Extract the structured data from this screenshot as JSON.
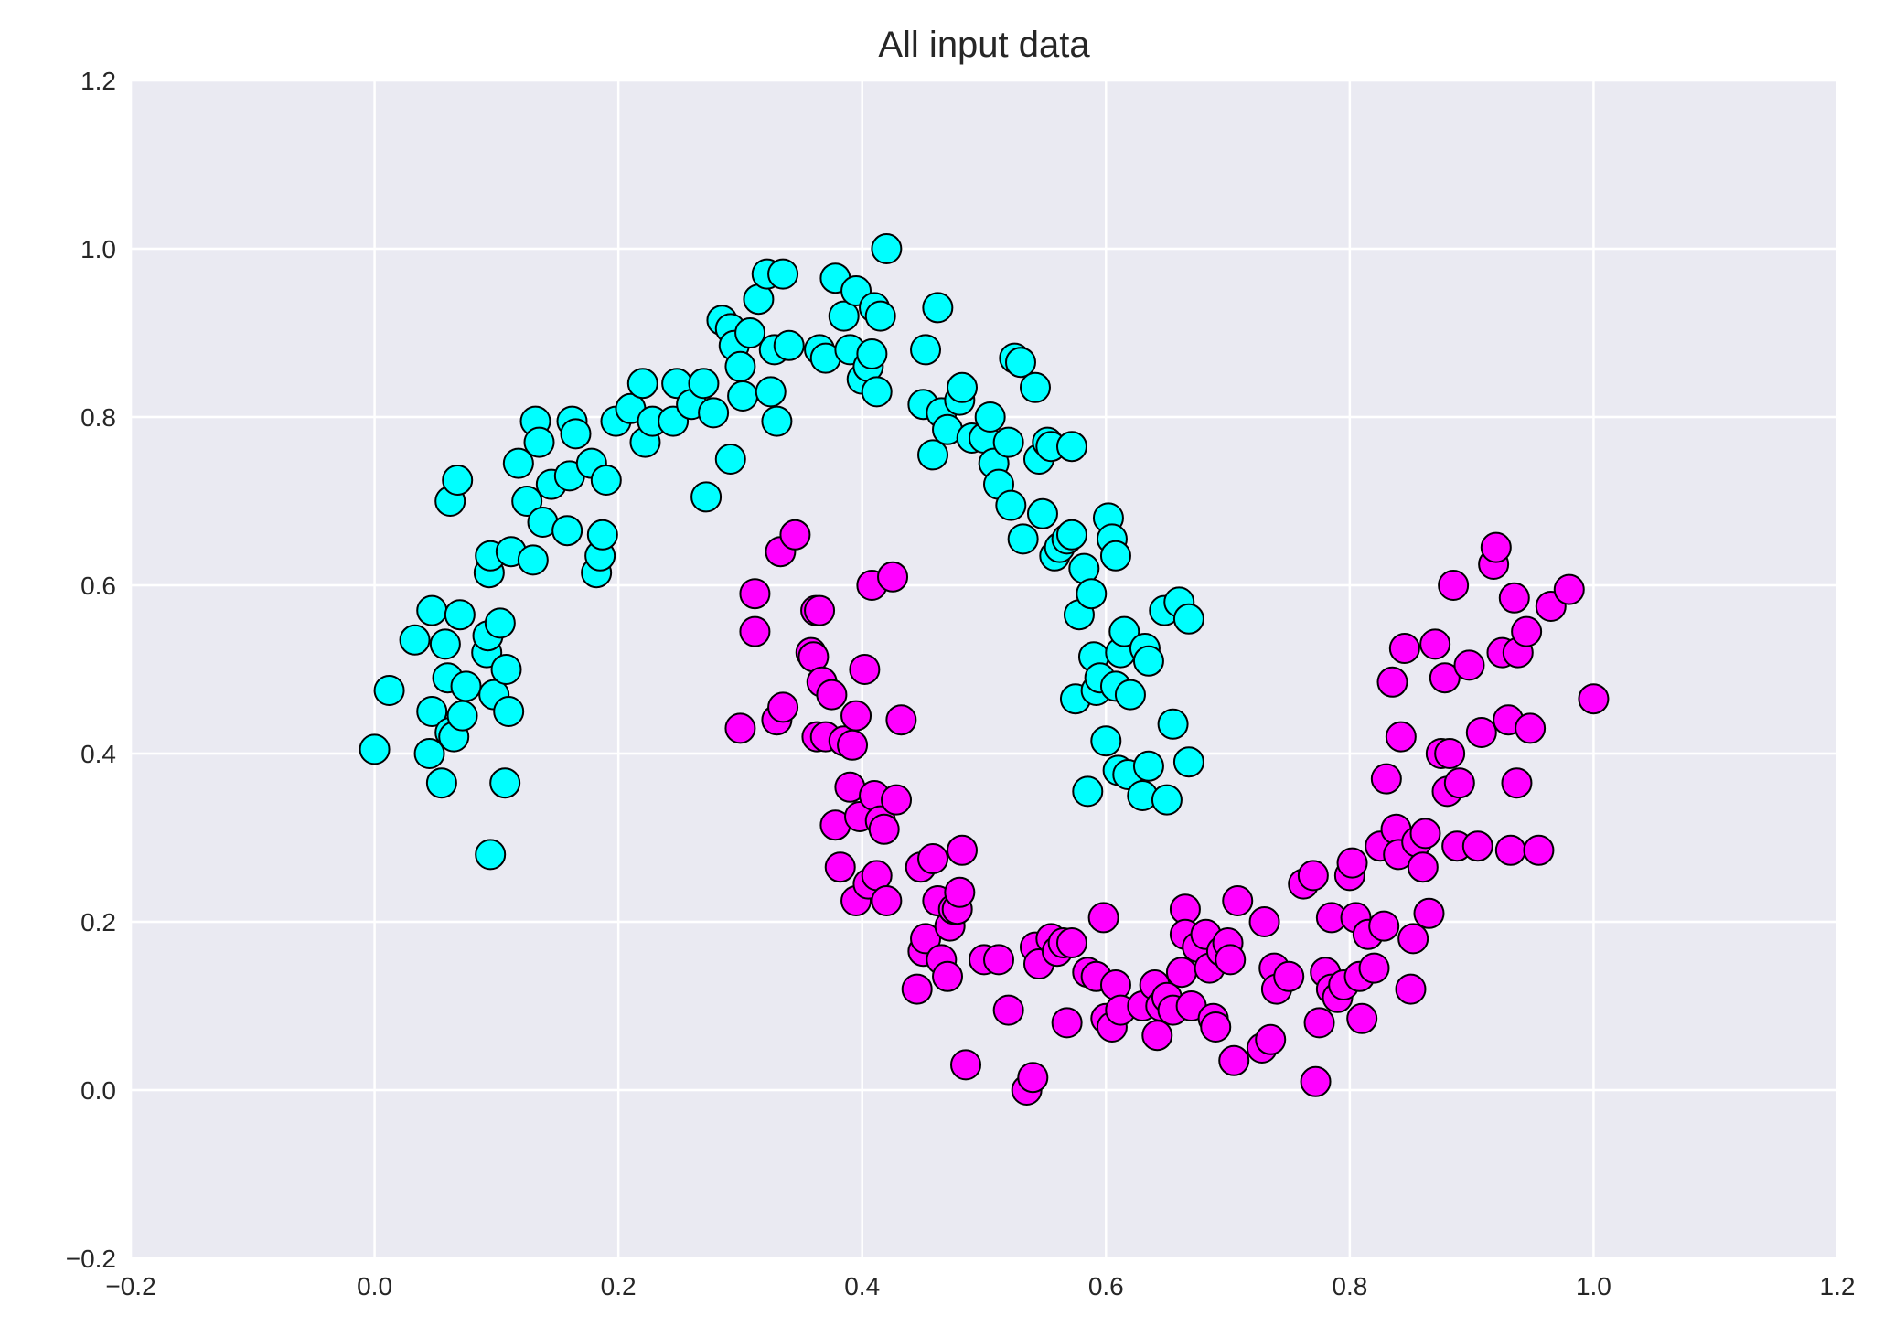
{
  "chart_data": {
    "type": "scatter",
    "title": "All input data",
    "xlabel": "",
    "ylabel": "",
    "xlim": [
      -0.2,
      1.2
    ],
    "ylim": [
      -0.2,
      1.2
    ],
    "xticks": [
      -0.2,
      0.0,
      0.2,
      0.4,
      0.6,
      0.8,
      1.0,
      1.2
    ],
    "xtick_labels": [
      "−0.2",
      "0.0",
      "0.2",
      "0.4",
      "0.6",
      "0.8",
      "1.0",
      "1.2"
    ],
    "yticks": [
      -0.2,
      0.0,
      0.2,
      0.4,
      0.6,
      0.8,
      1.0,
      1.2
    ],
    "ytick_labels": [
      "−0.2",
      "0.0",
      "0.2",
      "0.4",
      "0.6",
      "0.8",
      "1.0",
      "1.2"
    ],
    "grid": true,
    "legend": "none",
    "colors": {
      "background": "#eaeaf2",
      "grid": "#ffffff",
      "edge": "#000000"
    },
    "series": [
      {
        "color": "#00ffff",
        "points": [
          [
            0.0,
            0.405
          ],
          [
            0.012,
            0.475
          ],
          [
            0.033,
            0.535
          ],
          [
            0.045,
            0.4
          ],
          [
            0.047,
            0.57
          ],
          [
            0.047,
            0.45
          ],
          [
            0.055,
            0.365
          ],
          [
            0.058,
            0.53
          ],
          [
            0.06,
            0.49
          ],
          [
            0.062,
            0.7
          ],
          [
            0.062,
            0.425
          ],
          [
            0.065,
            0.42
          ],
          [
            0.068,
            0.725
          ],
          [
            0.07,
            0.565
          ],
          [
            0.072,
            0.445
          ],
          [
            0.075,
            0.48
          ],
          [
            0.092,
            0.52
          ],
          [
            0.093,
            0.54
          ],
          [
            0.094,
            0.615
          ],
          [
            0.095,
            0.28
          ],
          [
            0.095,
            0.635
          ],
          [
            0.098,
            0.47
          ],
          [
            0.103,
            0.555
          ],
          [
            0.107,
            0.365
          ],
          [
            0.108,
            0.5
          ],
          [
            0.11,
            0.45
          ],
          [
            0.112,
            0.64
          ],
          [
            0.118,
            0.745
          ],
          [
            0.125,
            0.7
          ],
          [
            0.13,
            0.63
          ],
          [
            0.132,
            0.795
          ],
          [
            0.135,
            0.77
          ],
          [
            0.138,
            0.675
          ],
          [
            0.145,
            0.72
          ],
          [
            0.158,
            0.665
          ],
          [
            0.16,
            0.73
          ],
          [
            0.162,
            0.795
          ],
          [
            0.165,
            0.78
          ],
          [
            0.178,
            0.745
          ],
          [
            0.182,
            0.615
          ],
          [
            0.185,
            0.635
          ],
          [
            0.187,
            0.66
          ],
          [
            0.19,
            0.725
          ],
          [
            0.198,
            0.795
          ],
          [
            0.21,
            0.81
          ],
          [
            0.22,
            0.84
          ],
          [
            0.222,
            0.77
          ],
          [
            0.228,
            0.795
          ],
          [
            0.245,
            0.795
          ],
          [
            0.248,
            0.84
          ],
          [
            0.26,
            0.815
          ],
          [
            0.27,
            0.84
          ],
          [
            0.272,
            0.705
          ],
          [
            0.278,
            0.805
          ],
          [
            0.285,
            0.915
          ],
          [
            0.292,
            0.905
          ],
          [
            0.292,
            0.75
          ],
          [
            0.295,
            0.885
          ],
          [
            0.3,
            0.86
          ],
          [
            0.302,
            0.825
          ],
          [
            0.308,
            0.9
          ],
          [
            0.315,
            0.94
          ],
          [
            0.322,
            0.97
          ],
          [
            0.325,
            0.83
          ],
          [
            0.328,
            0.88
          ],
          [
            0.33,
            0.795
          ],
          [
            0.335,
            0.97
          ],
          [
            0.34,
            0.885
          ],
          [
            0.365,
            0.88
          ],
          [
            0.37,
            0.87
          ],
          [
            0.378,
            0.965
          ],
          [
            0.385,
            0.92
          ],
          [
            0.39,
            0.88
          ],
          [
            0.395,
            0.95
          ],
          [
            0.4,
            0.845
          ],
          [
            0.405,
            0.86
          ],
          [
            0.408,
            0.875
          ],
          [
            0.41,
            0.93
          ],
          [
            0.412,
            0.83
          ],
          [
            0.415,
            0.92
          ],
          [
            0.42,
            1.0
          ],
          [
            0.45,
            0.815
          ],
          [
            0.452,
            0.88
          ],
          [
            0.458,
            0.755
          ],
          [
            0.462,
            0.93
          ],
          [
            0.465,
            0.805
          ],
          [
            0.47,
            0.785
          ],
          [
            0.48,
            0.82
          ],
          [
            0.482,
            0.835
          ],
          [
            0.49,
            0.775
          ],
          [
            0.5,
            0.775
          ],
          [
            0.505,
            0.8
          ],
          [
            0.508,
            0.745
          ],
          [
            0.512,
            0.72
          ],
          [
            0.52,
            0.77
          ],
          [
            0.522,
            0.695
          ],
          [
            0.525,
            0.87
          ],
          [
            0.53,
            0.865
          ],
          [
            0.532,
            0.655
          ],
          [
            0.542,
            0.835
          ],
          [
            0.545,
            0.75
          ],
          [
            0.548,
            0.685
          ],
          [
            0.552,
            0.77
          ],
          [
            0.555,
            0.765
          ],
          [
            0.558,
            0.635
          ],
          [
            0.562,
            0.645
          ],
          [
            0.568,
            0.655
          ],
          [
            0.572,
            0.66
          ],
          [
            0.572,
            0.765
          ],
          [
            0.575,
            0.465
          ],
          [
            0.578,
            0.565
          ],
          [
            0.582,
            0.62
          ],
          [
            0.585,
            0.355
          ],
          [
            0.588,
            0.59
          ],
          [
            0.59,
            0.515
          ],
          [
            0.592,
            0.475
          ],
          [
            0.595,
            0.49
          ],
          [
            0.6,
            0.415
          ],
          [
            0.602,
            0.68
          ],
          [
            0.605,
            0.655
          ],
          [
            0.608,
            0.48
          ],
          [
            0.608,
            0.635
          ],
          [
            0.61,
            0.38
          ],
          [
            0.612,
            0.52
          ],
          [
            0.615,
            0.545
          ],
          [
            0.618,
            0.375
          ],
          [
            0.62,
            0.47
          ],
          [
            0.63,
            0.35
          ],
          [
            0.632,
            0.525
          ],
          [
            0.635,
            0.51
          ],
          [
            0.635,
            0.385
          ],
          [
            0.648,
            0.57
          ],
          [
            0.65,
            0.345
          ],
          [
            0.655,
            0.435
          ],
          [
            0.66,
            0.58
          ],
          [
            0.668,
            0.56
          ],
          [
            0.668,
            0.39
          ]
        ]
      },
      {
        "color": "#ff00ff",
        "points": [
          [
            0.3,
            0.43
          ],
          [
            0.312,
            0.59
          ],
          [
            0.312,
            0.545
          ],
          [
            0.33,
            0.44
          ],
          [
            0.333,
            0.64
          ],
          [
            0.335,
            0.455
          ],
          [
            0.345,
            0.66
          ],
          [
            0.358,
            0.52
          ],
          [
            0.36,
            0.515
          ],
          [
            0.362,
            0.57
          ],
          [
            0.363,
            0.42
          ],
          [
            0.365,
            0.57
          ],
          [
            0.367,
            0.485
          ],
          [
            0.37,
            0.42
          ],
          [
            0.375,
            0.47
          ],
          [
            0.378,
            0.315
          ],
          [
            0.382,
            0.265
          ],
          [
            0.385,
            0.415
          ],
          [
            0.39,
            0.36
          ],
          [
            0.392,
            0.41
          ],
          [
            0.395,
            0.445
          ],
          [
            0.395,
            0.225
          ],
          [
            0.398,
            0.325
          ],
          [
            0.402,
            0.5
          ],
          [
            0.405,
            0.245
          ],
          [
            0.408,
            0.6
          ],
          [
            0.41,
            0.35
          ],
          [
            0.412,
            0.255
          ],
          [
            0.415,
            0.32
          ],
          [
            0.418,
            0.31
          ],
          [
            0.42,
            0.225
          ],
          [
            0.425,
            0.61
          ],
          [
            0.428,
            0.345
          ],
          [
            0.432,
            0.44
          ],
          [
            0.445,
            0.12
          ],
          [
            0.448,
            0.265
          ],
          [
            0.45,
            0.165
          ],
          [
            0.452,
            0.18
          ],
          [
            0.458,
            0.275
          ],
          [
            0.462,
            0.225
          ],
          [
            0.465,
            0.155
          ],
          [
            0.47,
            0.135
          ],
          [
            0.472,
            0.195
          ],
          [
            0.475,
            0.215
          ],
          [
            0.478,
            0.215
          ],
          [
            0.48,
            0.235
          ],
          [
            0.482,
            0.285
          ],
          [
            0.485,
            0.03
          ],
          [
            0.5,
            0.155
          ],
          [
            0.512,
            0.155
          ],
          [
            0.52,
            0.095
          ],
          [
            0.535,
            0.0
          ],
          [
            0.54,
            0.015
          ],
          [
            0.542,
            0.17
          ],
          [
            0.545,
            0.15
          ],
          [
            0.555,
            0.18
          ],
          [
            0.56,
            0.165
          ],
          [
            0.565,
            0.175
          ],
          [
            0.568,
            0.08
          ],
          [
            0.572,
            0.175
          ],
          [
            0.585,
            0.14
          ],
          [
            0.592,
            0.135
          ],
          [
            0.598,
            0.205
          ],
          [
            0.6,
            0.085
          ],
          [
            0.605,
            0.075
          ],
          [
            0.608,
            0.125
          ],
          [
            0.612,
            0.095
          ],
          [
            0.63,
            0.1
          ],
          [
            0.64,
            0.125
          ],
          [
            0.642,
            0.065
          ],
          [
            0.645,
            0.1
          ],
          [
            0.65,
            0.11
          ],
          [
            0.655,
            0.095
          ],
          [
            0.662,
            0.14
          ],
          [
            0.665,
            0.215
          ],
          [
            0.665,
            0.185
          ],
          [
            0.67,
            0.1
          ],
          [
            0.675,
            0.17
          ],
          [
            0.682,
            0.185
          ],
          [
            0.685,
            0.145
          ],
          [
            0.688,
            0.085
          ],
          [
            0.69,
            0.075
          ],
          [
            0.695,
            0.165
          ],
          [
            0.7,
            0.175
          ],
          [
            0.702,
            0.155
          ],
          [
            0.705,
            0.035
          ],
          [
            0.708,
            0.225
          ],
          [
            0.728,
            0.05
          ],
          [
            0.73,
            0.2
          ],
          [
            0.735,
            0.06
          ],
          [
            0.738,
            0.145
          ],
          [
            0.74,
            0.12
          ],
          [
            0.75,
            0.135
          ],
          [
            0.762,
            0.245
          ],
          [
            0.77,
            0.255
          ],
          [
            0.775,
            0.08
          ],
          [
            0.772,
            0.01
          ],
          [
            0.78,
            0.14
          ],
          [
            0.785,
            0.205
          ],
          [
            0.785,
            0.12
          ],
          [
            0.79,
            0.11
          ],
          [
            0.795,
            0.125
          ],
          [
            0.8,
            0.255
          ],
          [
            0.802,
            0.27
          ],
          [
            0.805,
            0.205
          ],
          [
            0.808,
            0.135
          ],
          [
            0.81,
            0.085
          ],
          [
            0.815,
            0.185
          ],
          [
            0.82,
            0.145
          ],
          [
            0.825,
            0.29
          ],
          [
            0.828,
            0.195
          ],
          [
            0.83,
            0.37
          ],
          [
            0.835,
            0.485
          ],
          [
            0.838,
            0.31
          ],
          [
            0.84,
            0.28
          ],
          [
            0.842,
            0.42
          ],
          [
            0.845,
            0.525
          ],
          [
            0.85,
            0.12
          ],
          [
            0.852,
            0.18
          ],
          [
            0.855,
            0.295
          ],
          [
            0.86,
            0.265
          ],
          [
            0.862,
            0.305
          ],
          [
            0.865,
            0.21
          ],
          [
            0.87,
            0.53
          ],
          [
            0.875,
            0.4
          ],
          [
            0.878,
            0.49
          ],
          [
            0.88,
            0.355
          ],
          [
            0.882,
            0.4
          ],
          [
            0.885,
            0.6
          ],
          [
            0.888,
            0.29
          ],
          [
            0.89,
            0.365
          ],
          [
            0.898,
            0.505
          ],
          [
            0.905,
            0.29
          ],
          [
            0.908,
            0.425
          ],
          [
            0.918,
            0.625
          ],
          [
            0.92,
            0.645
          ],
          [
            0.925,
            0.52
          ],
          [
            0.93,
            0.44
          ],
          [
            0.932,
            0.285
          ],
          [
            0.935,
            0.585
          ],
          [
            0.937,
            0.365
          ],
          [
            0.938,
            0.52
          ],
          [
            0.945,
            0.545
          ],
          [
            0.948,
            0.43
          ],
          [
            0.955,
            0.285
          ],
          [
            0.965,
            0.575
          ],
          [
            0.98,
            0.595
          ],
          [
            1.0,
            0.465
          ]
        ]
      }
    ]
  }
}
